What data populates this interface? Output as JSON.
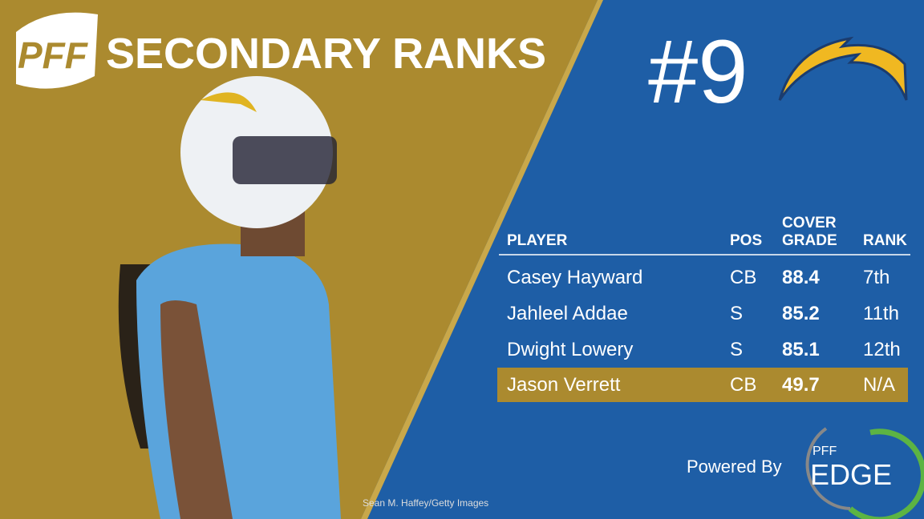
{
  "header": {
    "logo": "PFF",
    "title": "SECONDARY RANKS"
  },
  "rank": "#9",
  "table": {
    "columns": [
      "PLAYER",
      "POS",
      "COVER GRADE",
      "RANK"
    ],
    "rows": [
      [
        "Casey Hayward",
        "CB",
        "88.4",
        "7th"
      ],
      [
        "Jahleel Addae",
        "S",
        "85.2",
        "11th"
      ],
      [
        "Dwight Lowery",
        "S",
        "85.1",
        "12th"
      ],
      [
        "Jason Verrett",
        "CB",
        "49.7",
        "N/A"
      ]
    ]
  },
  "footer": {
    "powered_by": "Powered By",
    "brand_small": "PFF",
    "brand": "EDGE"
  },
  "credit": "Sean M. Haffey/Getty Images"
}
